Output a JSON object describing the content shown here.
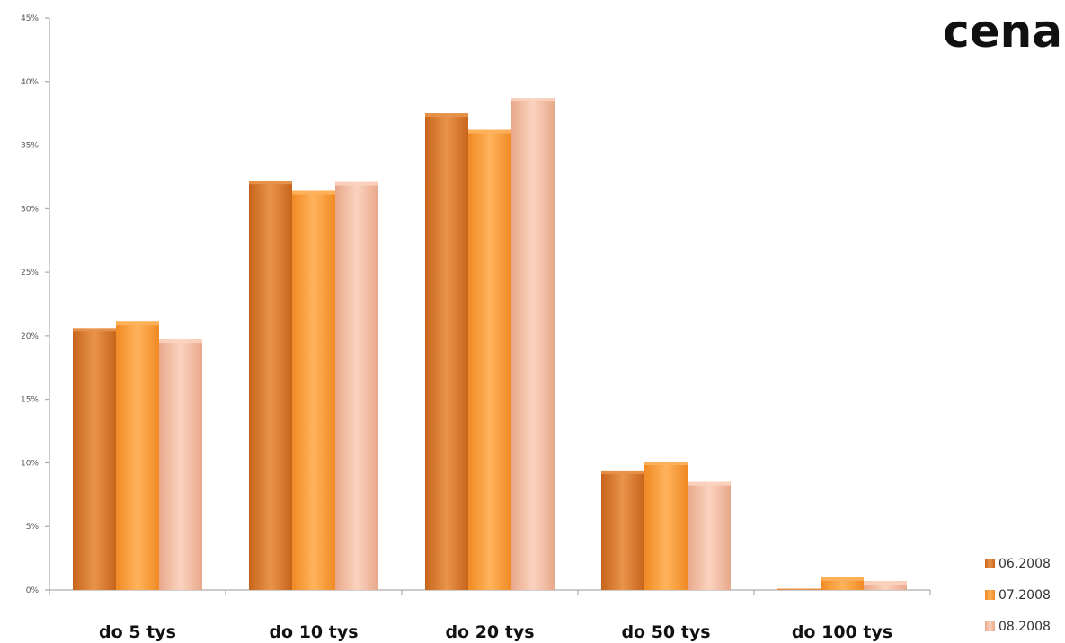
{
  "chart_data": {
    "type": "bar",
    "title": "cena",
    "xlabel": "",
    "ylabel": "",
    "categories": [
      "do 5 tys",
      "do 10 tys",
      "do 20 tys",
      "do 50 tys",
      "do 100 tys"
    ],
    "series": [
      {
        "name": "06.2008",
        "values": [
          20.6,
          32.2,
          37.5,
          9.4,
          0.1
        ],
        "color": "#c8641c",
        "color_light": "#e8944a"
      },
      {
        "name": "07.2008",
        "values": [
          21.1,
          31.4,
          36.2,
          10.1,
          1.0
        ],
        "color": "#f08a24",
        "color_light": "#ffb35c"
      },
      {
        "name": "08.2008",
        "values": [
          19.7,
          32.1,
          38.7,
          8.5,
          0.7
        ],
        "color": "#e8a88a",
        "color_light": "#fbd3bf"
      }
    ],
    "ylim": [
      0,
      45
    ],
    "yticks": [
      "0%",
      "5%",
      "10%",
      "15%",
      "20%",
      "25%",
      "30%",
      "35%",
      "40%",
      "45%"
    ],
    "grid": false,
    "legend_position": "bottom-right"
  }
}
